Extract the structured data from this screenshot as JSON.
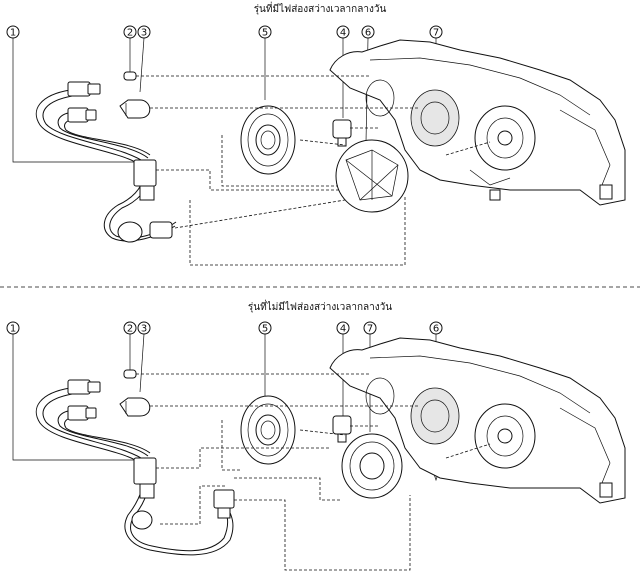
{
  "sections": [
    {
      "title": "รุ่นที่มีไฟส่องสว่างเวลากลางวัน",
      "callouts": [
        "1",
        "2",
        "3",
        "5",
        "4",
        "6",
        "7"
      ]
    },
    {
      "title": "รุ่นที่ไม่มีไฟส่องสว่างเวลากลางวัน",
      "callouts": [
        "1",
        "2",
        "3",
        "5",
        "4",
        "7",
        "6"
      ]
    }
  ]
}
